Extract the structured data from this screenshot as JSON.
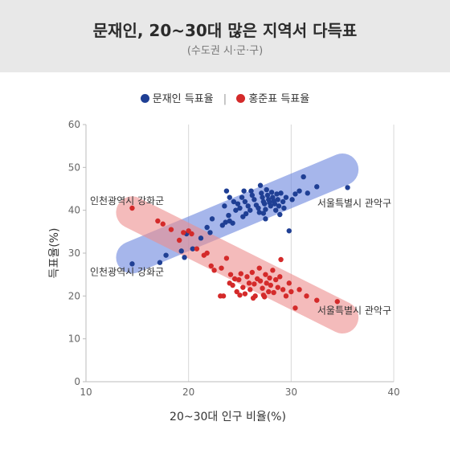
{
  "header": {
    "title": "문재인, 20~30대 많은 지역서 다득표",
    "subtitle": "(수도권 시·군·구)"
  },
  "legend": {
    "items": [
      {
        "label": "문재인 득표율",
        "color": "#1f3f94"
      },
      {
        "label": "홍준표 득표율",
        "color": "#d42a2a"
      }
    ],
    "separator": "|"
  },
  "chart_data": {
    "type": "scatter",
    "xlabel": "20~30대 인구 비율(%)",
    "ylabel": "득표율(%)",
    "xlim": [
      10,
      40
    ],
    "ylim": [
      0,
      60
    ],
    "xticks": [
      10,
      20,
      30,
      40
    ],
    "yticks": [
      0,
      10,
      20,
      30,
      40,
      50,
      60
    ],
    "grid": "vertical",
    "trend_bands": [
      {
        "series": "문재인 득표율",
        "from": [
          14.5,
          29
        ],
        "to": [
          35,
          49.5
        ],
        "color": "#6a86dd"
      },
      {
        "series": "홍준표 득표율",
        "from": [
          14.5,
          39.5
        ],
        "to": [
          35,
          15
        ],
        "color": "#ec8e8e"
      }
    ],
    "annotations": [
      {
        "text": "인천광역시 강화군",
        "x": 14.5,
        "y": 40.5
      },
      {
        "text": "서울특별시 관악구",
        "x": 35.5,
        "y": 43.5
      },
      {
        "text": "인천광역시 강화군",
        "x": 14.5,
        "y": 27.5
      },
      {
        "text": "서울특별시 관악구",
        "x": 35.5,
        "y": 18.5
      }
    ],
    "series": [
      {
        "name": "문재인 득표율",
        "color": "#1f3f94",
        "points": [
          [
            14.5,
            27.5
          ],
          [
            17.2,
            27.8
          ],
          [
            17.8,
            29.5
          ],
          [
            19.3,
            30.5
          ],
          [
            19.6,
            29
          ],
          [
            19.8,
            34.5
          ],
          [
            20.4,
            31
          ],
          [
            21.2,
            33.5
          ],
          [
            21.8,
            36
          ],
          [
            22.3,
            38
          ],
          [
            22.1,
            34.8
          ],
          [
            23.3,
            36.5
          ],
          [
            23.6,
            37.2
          ],
          [
            24,
            37.5
          ],
          [
            24.3,
            37
          ],
          [
            23.5,
            41
          ],
          [
            23.7,
            44.5
          ],
          [
            24,
            43
          ],
          [
            24.4,
            42
          ],
          [
            24.8,
            41.5
          ],
          [
            25,
            40.5
          ],
          [
            25.2,
            43
          ],
          [
            25.4,
            44.5
          ],
          [
            25.5,
            42
          ],
          [
            25.8,
            41
          ],
          [
            26,
            40
          ],
          [
            26.2,
            43.5
          ],
          [
            26.4,
            42.5
          ],
          [
            26.6,
            41.2
          ],
          [
            26.8,
            40.5
          ],
          [
            27,
            45.8
          ],
          [
            27.1,
            44
          ],
          [
            27.2,
            43
          ],
          [
            27.3,
            42
          ],
          [
            27.4,
            41.5
          ],
          [
            27.5,
            40.2
          ],
          [
            27.5,
            38
          ],
          [
            27.6,
            44.8
          ],
          [
            27.7,
            43.5
          ],
          [
            27.8,
            42.5
          ],
          [
            27.9,
            41.8
          ],
          [
            28,
            41
          ],
          [
            28.1,
            44.2
          ],
          [
            28.2,
            43
          ],
          [
            28.3,
            42.2
          ],
          [
            28.4,
            41.5
          ],
          [
            28.5,
            40
          ],
          [
            28.6,
            43.8
          ],
          [
            28.7,
            42.5
          ],
          [
            28.8,
            41
          ],
          [
            29,
            44
          ],
          [
            29.2,
            42
          ],
          [
            29.3,
            40.5
          ],
          [
            29.5,
            43
          ],
          [
            29.8,
            35.2
          ],
          [
            30.1,
            42.5
          ],
          [
            30.4,
            43.8
          ],
          [
            30.8,
            44.5
          ],
          [
            31.2,
            47.8
          ],
          [
            31.6,
            44
          ],
          [
            32.5,
            45.5
          ],
          [
            35.5,
            45.3
          ],
          [
            25.3,
            38.5
          ],
          [
            26.1,
            44.5
          ],
          [
            26.9,
            39.5
          ],
          [
            24.6,
            40
          ],
          [
            25.6,
            39.2
          ],
          [
            23.9,
            38.8
          ],
          [
            28.9,
            39
          ],
          [
            27.3,
            39.3
          ]
        ]
      },
      {
        "name": "홍준표 득표율",
        "color": "#d42a2a",
        "points": [
          [
            14.5,
            40.5
          ],
          [
            17,
            37.5
          ],
          [
            17.5,
            36.8
          ],
          [
            18.3,
            35.5
          ],
          [
            19.1,
            33
          ],
          [
            19.5,
            34.8
          ],
          [
            20,
            35.2
          ],
          [
            20.3,
            34.5
          ],
          [
            20.8,
            31
          ],
          [
            21.5,
            29.5
          ],
          [
            21.8,
            30
          ],
          [
            22.2,
            27
          ],
          [
            22.5,
            26
          ],
          [
            23.2,
            26.5
          ],
          [
            23.7,
            28.8
          ],
          [
            23.4,
            20
          ],
          [
            24,
            23
          ],
          [
            24.1,
            25
          ],
          [
            24.3,
            22.5
          ],
          [
            24.5,
            24
          ],
          [
            24.7,
            21
          ],
          [
            24.9,
            23.8
          ],
          [
            25.1,
            25.2
          ],
          [
            25.3,
            22
          ],
          [
            25.5,
            20.5
          ],
          [
            25.7,
            24.5
          ],
          [
            25.9,
            23
          ],
          [
            26,
            21.5
          ],
          [
            26.2,
            25.5
          ],
          [
            26.4,
            22.8
          ],
          [
            26.5,
            20
          ],
          [
            26.7,
            24
          ],
          [
            26.9,
            26.5
          ],
          [
            27,
            23.5
          ],
          [
            27.2,
            21.8
          ],
          [
            27.3,
            20.2
          ],
          [
            27.5,
            25
          ],
          [
            27.6,
            23
          ],
          [
            27.8,
            21
          ],
          [
            27.9,
            24.2
          ],
          [
            28,
            22.5
          ],
          [
            28.2,
            26
          ],
          [
            28.3,
            20.8
          ],
          [
            28.5,
            23.8
          ],
          [
            28.7,
            22
          ],
          [
            28.9,
            24.5
          ],
          [
            29,
            28.5
          ],
          [
            29.2,
            21.5
          ],
          [
            29.5,
            20
          ],
          [
            29.8,
            23
          ],
          [
            30,
            21
          ],
          [
            30.4,
            17.2
          ],
          [
            30.8,
            21.5
          ],
          [
            31.5,
            20
          ],
          [
            32.5,
            19
          ],
          [
            34.5,
            18.7
          ],
          [
            23.1,
            20
          ],
          [
            25,
            20.2
          ],
          [
            26.3,
            19.5
          ],
          [
            27.4,
            19.8
          ]
        ]
      }
    ]
  }
}
